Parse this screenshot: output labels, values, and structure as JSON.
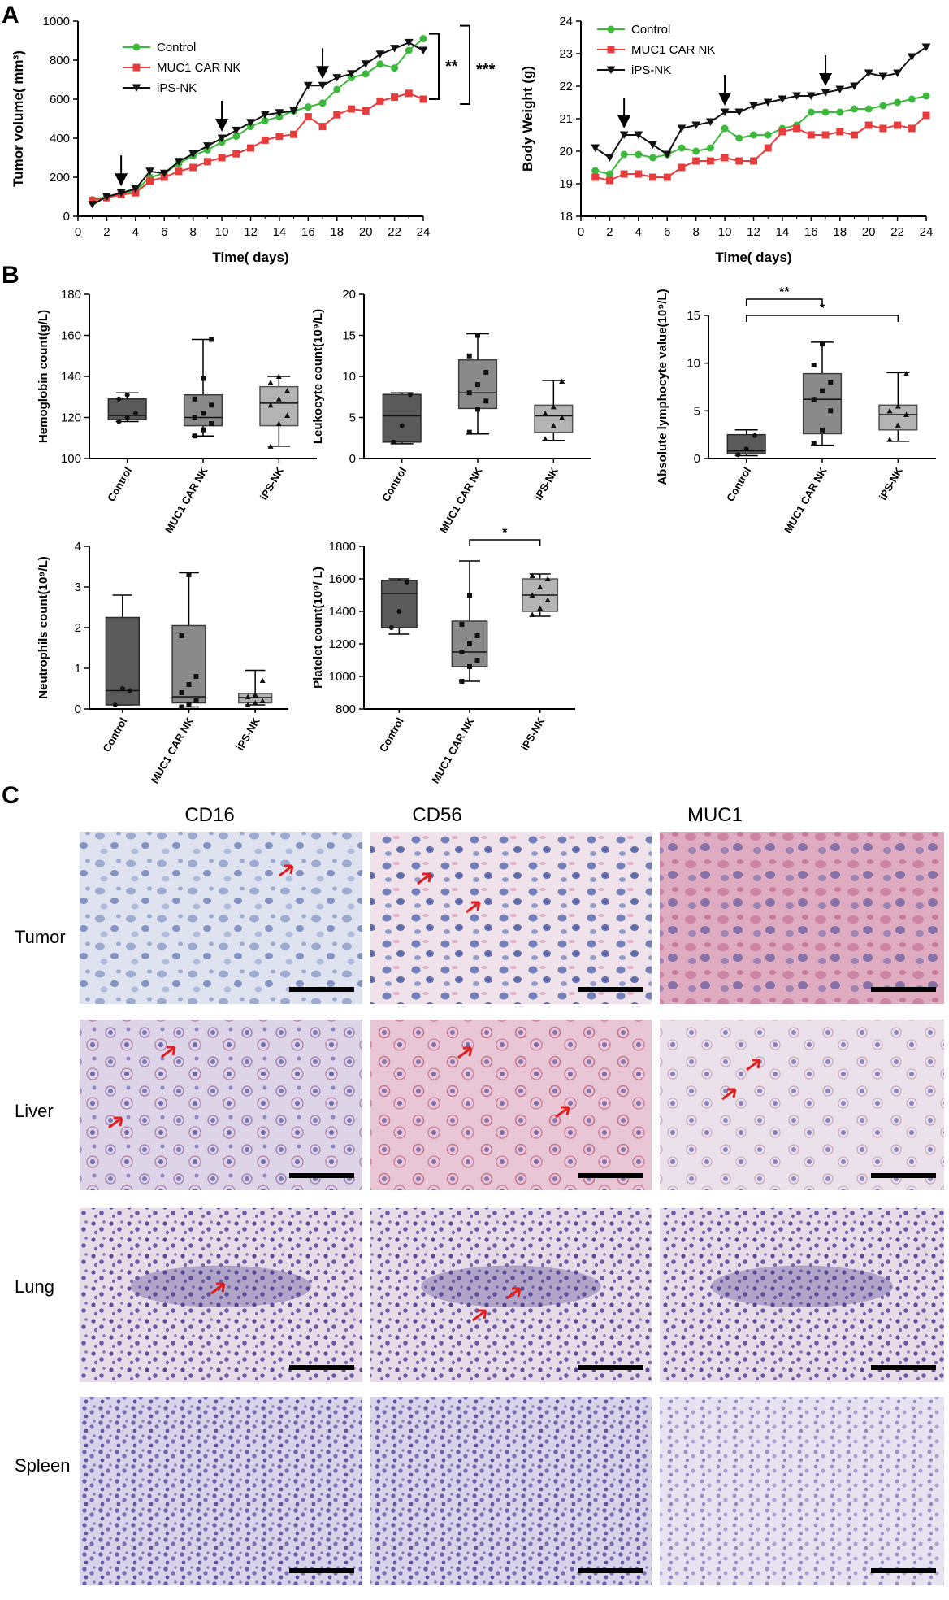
{
  "panel_labels": [
    "A",
    "B",
    "C"
  ],
  "chart_data": [
    {
      "type": "line",
      "xlabel": "Time( days)",
      "ylabel": "Tumor volume( mm³)",
      "xlim": [
        0,
        24
      ],
      "ylim": [
        0,
        1000
      ],
      "xticks": [
        "0",
        "2",
        "4",
        "6",
        "8",
        "10",
        "12",
        "14",
        "16",
        "18",
        "20",
        "22",
        "24"
      ],
      "yticks": [
        "0",
        "200",
        "400",
        "600",
        "800",
        "1000"
      ],
      "legend": "top-left",
      "arrows_at_x": [
        3,
        10,
        17
      ],
      "significance": [
        "**",
        "***"
      ],
      "series": [
        {
          "name": "Control",
          "color": "#3cb83c",
          "marker": "circle",
          "x": [
            1,
            2,
            3,
            4,
            5,
            6,
            7,
            8,
            9,
            10,
            11,
            12,
            13,
            14,
            15,
            16,
            17,
            18,
            19,
            20,
            21,
            22,
            23,
            24
          ],
          "y": [
            85,
            100,
            115,
            130,
            200,
            220,
            270,
            310,
            340,
            380,
            410,
            460,
            490,
            510,
            540,
            560,
            580,
            650,
            710,
            730,
            780,
            760,
            850,
            910
          ]
        },
        {
          "name": "MUC1 CAR NK",
          "color": "#e83c3c",
          "marker": "square",
          "x": [
            1,
            2,
            3,
            4,
            5,
            6,
            7,
            8,
            9,
            10,
            11,
            12,
            13,
            14,
            15,
            16,
            17,
            18,
            19,
            20,
            21,
            22,
            23,
            24
          ],
          "y": [
            80,
            95,
            110,
            120,
            180,
            200,
            230,
            250,
            280,
            300,
            320,
            350,
            390,
            410,
            420,
            510,
            460,
            520,
            550,
            540,
            590,
            610,
            630,
            600
          ]
        },
        {
          "name": "iPS-NK",
          "color": "#111111",
          "marker": "triangle-down",
          "x": [
            1,
            2,
            3,
            4,
            5,
            6,
            7,
            8,
            9,
            10,
            11,
            12,
            13,
            14,
            15,
            16,
            17,
            18,
            19,
            20,
            21,
            22,
            23,
            24
          ],
          "y": [
            60,
            100,
            120,
            140,
            230,
            220,
            280,
            320,
            360,
            400,
            440,
            480,
            520,
            530,
            540,
            670,
            670,
            710,
            730,
            780,
            830,
            860,
            890,
            850
          ]
        }
      ]
    },
    {
      "type": "line",
      "xlabel": "Time( days)",
      "ylabel": "Body Weight (g)",
      "xlim": [
        0,
        24
      ],
      "ylim": [
        18,
        24
      ],
      "xticks": [
        "0",
        "2",
        "4",
        "6",
        "8",
        "10",
        "12",
        "14",
        "16",
        "18",
        "20",
        "22",
        "24"
      ],
      "yticks": [
        "18",
        "19",
        "20",
        "21",
        "22",
        "23",
        "24"
      ],
      "legend": "top-left",
      "arrows_at_x": [
        3,
        10,
        17
      ],
      "series": [
        {
          "name": "Control",
          "color": "#3cb83c",
          "marker": "circle",
          "x": [
            1,
            2,
            3,
            4,
            5,
            6,
            7,
            8,
            9,
            10,
            11,
            12,
            13,
            14,
            15,
            16,
            17,
            18,
            19,
            20,
            21,
            22,
            23,
            24
          ],
          "y": [
            19.4,
            19.3,
            19.9,
            19.9,
            19.8,
            19.9,
            20.1,
            20.0,
            20.1,
            20.7,
            20.4,
            20.5,
            20.5,
            20.7,
            20.8,
            21.2,
            21.2,
            21.2,
            21.3,
            21.3,
            21.4,
            21.5,
            21.6,
            21.7
          ]
        },
        {
          "name": "MUC1 CAR NK",
          "color": "#e83c3c",
          "marker": "square",
          "x": [
            1,
            2,
            3,
            4,
            5,
            6,
            7,
            8,
            9,
            10,
            11,
            12,
            13,
            14,
            15,
            16,
            17,
            18,
            19,
            20,
            21,
            22,
            23,
            24
          ],
          "y": [
            19.2,
            19.1,
            19.3,
            19.3,
            19.2,
            19.2,
            19.5,
            19.7,
            19.7,
            19.8,
            19.7,
            19.7,
            20.1,
            20.6,
            20.7,
            20.5,
            20.5,
            20.6,
            20.5,
            20.8,
            20.7,
            20.8,
            20.7,
            21.1
          ]
        },
        {
          "name": "iPS-NK",
          "color": "#111111",
          "marker": "triangle-down",
          "x": [
            1,
            2,
            3,
            4,
            5,
            6,
            7,
            8,
            9,
            10,
            11,
            12,
            13,
            14,
            15,
            16,
            17,
            18,
            19,
            20,
            21,
            22,
            23,
            24
          ],
          "y": [
            20.1,
            19.8,
            20.5,
            20.5,
            20.2,
            19.9,
            20.7,
            20.8,
            20.9,
            21.2,
            21.2,
            21.4,
            21.5,
            21.6,
            21.7,
            21.7,
            21.8,
            21.9,
            22.0,
            22.4,
            22.3,
            22.4,
            22.9,
            23.2
          ]
        }
      ]
    },
    {
      "type": "box",
      "ylabel": "Hemoglobin count(g/L)",
      "ylim": [
        100,
        180
      ],
      "yticks": [
        "100",
        "120",
        "140",
        "160",
        "180"
      ],
      "categories": [
        "Control",
        "MUC1 CAR NK",
        "iPS-NK"
      ],
      "boxes": [
        {
          "min": 118,
          "q1": 119,
          "median": 121,
          "q3": 129,
          "max": 132,
          "points": [
            118,
            120,
            122,
            129,
            131
          ]
        },
        {
          "min": 111,
          "q1": 116,
          "median": 120,
          "q3": 131,
          "max": 158,
          "points": [
            111,
            114,
            117,
            120,
            122,
            126,
            129,
            139,
            158
          ]
        },
        {
          "min": 106,
          "q1": 116,
          "median": 127,
          "q3": 135,
          "max": 140,
          "points": [
            106,
            117,
            121,
            126,
            129,
            133,
            137,
            140
          ]
        }
      ]
    },
    {
      "type": "box",
      "ylabel": "Leukocyte count(10⁹/L)",
      "ylim": [
        0,
        20
      ],
      "yticks": [
        "0",
        "5",
        "10",
        "15",
        "20"
      ],
      "categories": [
        "Control",
        "MUC1 CAR NK",
        "iPS-NK"
      ],
      "boxes": [
        {
          "min": 1.8,
          "q1": 2.0,
          "median": 5.2,
          "q3": 7.8,
          "max": 8.0,
          "points": [
            2.0,
            4.0,
            7.8
          ]
        },
        {
          "min": 3.0,
          "q1": 6.1,
          "median": 8.0,
          "q3": 12.0,
          "max": 15.2,
          "points": [
            3.2,
            6.0,
            7.0,
            8.0,
            9.0,
            10.5,
            12.5,
            15.0
          ]
        },
        {
          "min": 2.2,
          "q1": 3.2,
          "median": 5.2,
          "q3": 6.5,
          "max": 9.5,
          "points": [
            2.4,
            4.0,
            5.0,
            5.5,
            6.3,
            9.4
          ]
        }
      ]
    },
    {
      "type": "box",
      "ylabel": "Absolute lymphocyte value(10⁹/L)",
      "ylim": [
        0,
        15
      ],
      "yticks": [
        "0",
        "5",
        "10",
        "15"
      ],
      "categories": [
        "Control",
        "MUC1 CAR NK",
        "iPS-NK"
      ],
      "significance": [
        {
          "pair": [
            0,
            1
          ],
          "label": "**"
        },
        {
          "pair": [
            0,
            2
          ],
          "label": "*"
        }
      ],
      "boxes": [
        {
          "min": 0.3,
          "q1": 0.5,
          "median": 0.8,
          "q3": 2.5,
          "max": 3.0,
          "points": [
            0.4,
            1.0,
            2.4
          ]
        },
        {
          "min": 1.4,
          "q1": 2.6,
          "median": 6.2,
          "q3": 8.9,
          "max": 12.2,
          "points": [
            1.6,
            3.0,
            5.0,
            6.2,
            7.1,
            8.0,
            9.8,
            12.0
          ]
        },
        {
          "min": 1.8,
          "q1": 3.0,
          "median": 4.6,
          "q3": 5.6,
          "max": 9.0,
          "points": [
            2.0,
            3.5,
            4.6,
            5.0,
            5.5,
            8.9
          ]
        }
      ]
    },
    {
      "type": "box",
      "ylabel": "Neutrophils count(10⁹/L)",
      "ylim": [
        0,
        4
      ],
      "yticks": [
        "0",
        "1",
        "2",
        "3",
        "4"
      ],
      "categories": [
        "Control",
        "MUC1 CAR NK",
        "iPS-NK"
      ],
      "boxes": [
        {
          "min": 0.1,
          "q1": 0.1,
          "median": 0.45,
          "q3": 2.25,
          "max": 2.8,
          "points": [
            0.1,
            0.5,
            0.45
          ]
        },
        {
          "min": 0.05,
          "q1": 0.15,
          "median": 0.3,
          "q3": 2.05,
          "max": 3.35,
          "points": [
            0.05,
            0.1,
            0.2,
            0.4,
            0.6,
            0.8,
            1.8,
            3.3
          ]
        },
        {
          "min": 0.1,
          "q1": 0.15,
          "median": 0.28,
          "q3": 0.38,
          "max": 0.95,
          "points": [
            0.1,
            0.15,
            0.2,
            0.3,
            0.35,
            0.7
          ]
        }
      ]
    },
    {
      "type": "box",
      "ylabel": "Platelet count(10⁹/ L)",
      "ylim": [
        800,
        1800
      ],
      "yticks": [
        "800",
        "1000",
        "1200",
        "1400",
        "1600",
        "1800"
      ],
      "categories": [
        "Control",
        "MUC1 CAR NK",
        "iPS-NK"
      ],
      "significance": [
        {
          "pair": [
            1,
            2
          ],
          "label": "*"
        }
      ],
      "boxes": [
        {
          "min": 1260,
          "q1": 1300,
          "median": 1510,
          "q3": 1590,
          "max": 1600,
          "points": [
            1300,
            1400,
            1580
          ]
        },
        {
          "min": 970,
          "q1": 1060,
          "median": 1150,
          "q3": 1340,
          "max": 1710,
          "points": [
            970,
            1060,
            1100,
            1150,
            1200,
            1250,
            1320,
            1500
          ]
        },
        {
          "min": 1370,
          "q1": 1400,
          "median": 1500,
          "q3": 1600,
          "max": 1630,
          "points": [
            1380,
            1420,
            1470,
            1500,
            1550,
            1600,
            1620
          ]
        }
      ]
    }
  ],
  "histology": {
    "columns": [
      "CD16",
      "CD56",
      "MUC1"
    ],
    "rows": [
      "Tumor",
      "Liver",
      "Lung",
      "Spleen"
    ]
  }
}
